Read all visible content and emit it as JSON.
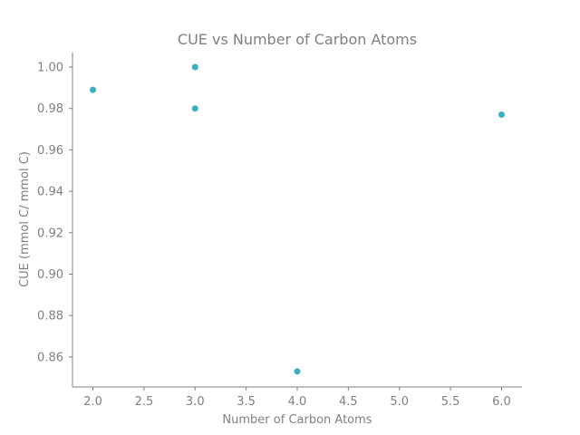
{
  "chart_data": {
    "type": "scatter",
    "title": "CUE vs Number of Carbon Atoms",
    "xlabel": "Number of Carbon Atoms",
    "ylabel": "CUE (mmol C/ mmol C)",
    "x": [
      2,
      3,
      3,
      4,
      6
    ],
    "y": [
      0.989,
      1.0,
      0.98,
      0.853,
      0.977
    ],
    "xlim": [
      1.8,
      6.2
    ],
    "ylim": [
      0.8455,
      1.007
    ],
    "xticks": [
      2.0,
      2.5,
      3.0,
      3.5,
      4.0,
      4.5,
      5.0,
      5.5,
      6.0
    ],
    "xtick_labels": [
      "2.0",
      "2.5",
      "3.0",
      "3.5",
      "4.0",
      "4.5",
      "5.0",
      "5.5",
      "6.0"
    ],
    "yticks": [
      0.86,
      0.88,
      0.9,
      0.92,
      0.94,
      0.96,
      0.98,
      1.0
    ],
    "ytick_labels": [
      "0.86",
      "0.88",
      "0.90",
      "0.92",
      "0.94",
      "0.96",
      "0.98",
      "1.00"
    ],
    "grid": false,
    "spines": [
      "left",
      "bottom"
    ],
    "marker_color": "#3ab0c0",
    "axis_color": "#808080"
  }
}
